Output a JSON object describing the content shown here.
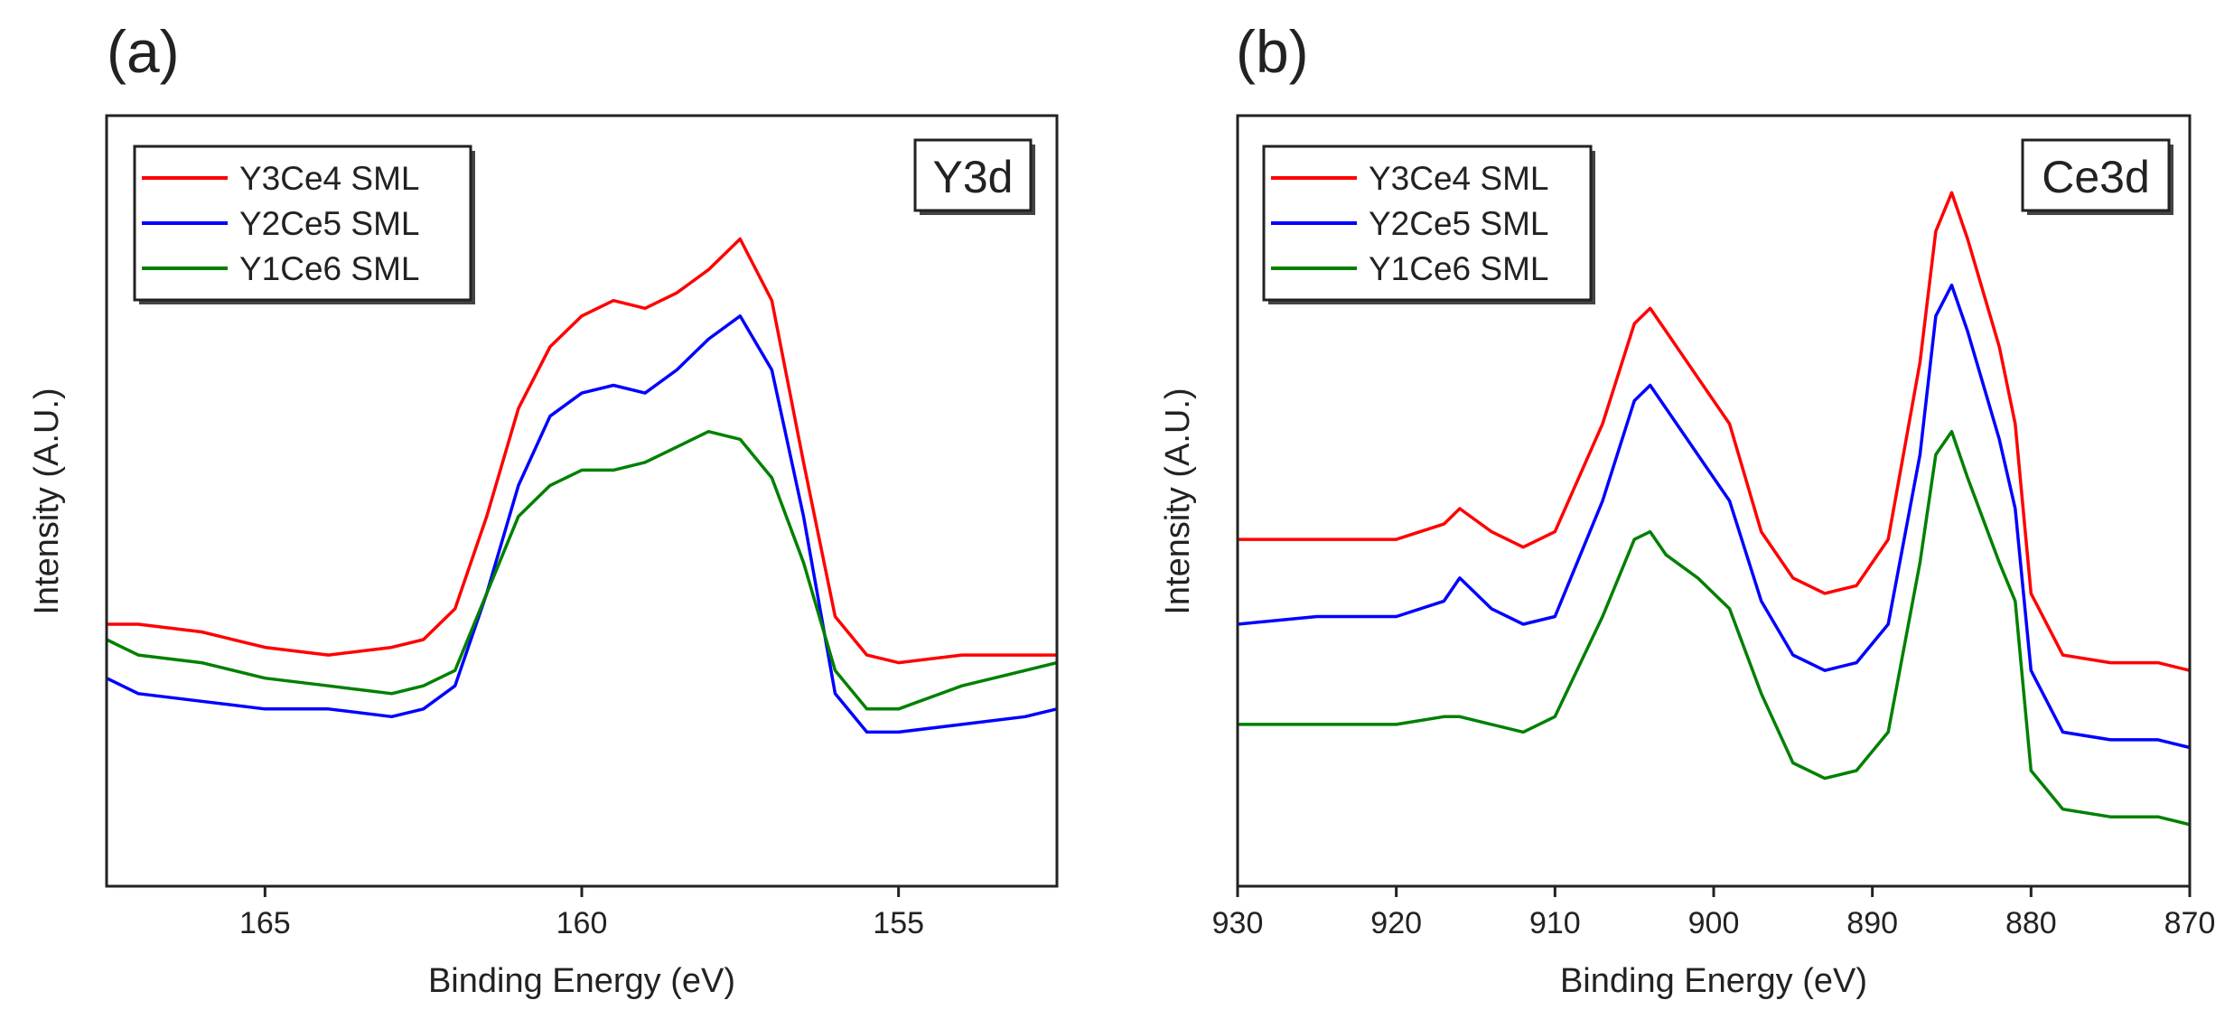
{
  "figure": {
    "panels": [
      "(a)",
      "(b)"
    ]
  },
  "chart_data": [
    {
      "type": "line",
      "panel_label": "(a)",
      "title": "Y3d",
      "xlabel": "Binding Energy (eV)",
      "ylabel": "Intensity (A.U.)",
      "xlim": [
        167.5,
        152.5
      ],
      "x_reversed": true,
      "ylim": [
        0,
        100
      ],
      "y_ticks_shown": false,
      "xticks": [
        165,
        160,
        155
      ],
      "legend_position": "top-left",
      "colors": [
        "#ff0000",
        "#0000ff",
        "#008000"
      ],
      "x": [
        167.5,
        167.0,
        166.0,
        165.0,
        164.0,
        163.0,
        162.5,
        162.0,
        161.5,
        161.0,
        160.5,
        160.0,
        159.5,
        159.0,
        158.5,
        158.0,
        157.5,
        157.0,
        156.5,
        156.0,
        155.5,
        155.0,
        154.0,
        153.0,
        152.5
      ],
      "series": [
        {
          "name": "Y3Ce4 SML",
          "values": [
            34,
            34,
            33,
            31,
            30,
            31,
            32,
            36,
            48,
            62,
            70,
            74,
            76,
            75,
            77,
            80,
            84,
            76,
            55,
            35,
            30,
            29,
            30,
            30,
            30
          ]
        },
        {
          "name": "Y2Ce5 SML",
          "values": [
            27,
            25,
            24,
            23,
            23,
            22,
            23,
            26,
            38,
            52,
            61,
            64,
            65,
            64,
            67,
            71,
            74,
            67,
            48,
            25,
            20,
            20,
            21,
            22,
            23
          ]
        },
        {
          "name": "Y1Ce6 SML",
          "values": [
            32,
            30,
            29,
            27,
            26,
            25,
            26,
            28,
            38,
            48,
            52,
            54,
            54,
            55,
            57,
            59,
            58,
            53,
            42,
            28,
            23,
            23,
            26,
            28,
            29
          ]
        }
      ]
    },
    {
      "type": "line",
      "panel_label": "(b)",
      "title": "Ce3d",
      "xlabel": "Binding Energy (eV)",
      "ylabel": "Intensity (A.U.)",
      "xlim": [
        930,
        870
      ],
      "x_reversed": true,
      "ylim": [
        0,
        100
      ],
      "y_ticks_shown": false,
      "xticks": [
        930,
        920,
        910,
        900,
        890,
        880,
        870
      ],
      "legend_position": "top-left",
      "colors": [
        "#ff0000",
        "#0000ff",
        "#008000"
      ],
      "x": [
        930,
        925,
        920,
        917,
        916,
        914,
        912,
        910,
        907,
        905,
        904,
        903,
        901,
        899,
        897,
        895,
        893,
        891,
        889,
        887,
        886,
        885,
        884,
        882,
        881,
        880,
        878,
        875,
        872,
        870
      ],
      "series": [
        {
          "name": "Y3Ce4 SML",
          "values": [
            45,
            45,
            45,
            47,
            49,
            46,
            44,
            46,
            60,
            73,
            75,
            72,
            66,
            60,
            46,
            40,
            38,
            39,
            45,
            68,
            85,
            90,
            84,
            70,
            60,
            38,
            30,
            29,
            29,
            28
          ]
        },
        {
          "name": "Y2Ce5 SML",
          "values": [
            34,
            35,
            35,
            37,
            40,
            36,
            34,
            35,
            50,
            63,
            65,
            62,
            56,
            50,
            37,
            30,
            28,
            29,
            34,
            56,
            74,
            78,
            72,
            58,
            49,
            28,
            20,
            19,
            19,
            18
          ]
        },
        {
          "name": "Y1Ce6 SML",
          "values": [
            21,
            21,
            21,
            22,
            22,
            21,
            20,
            22,
            35,
            45,
            46,
            43,
            40,
            36,
            25,
            16,
            14,
            15,
            20,
            42,
            56,
            59,
            53,
            42,
            37,
            15,
            10,
            9,
            9,
            8
          ]
        }
      ]
    }
  ]
}
